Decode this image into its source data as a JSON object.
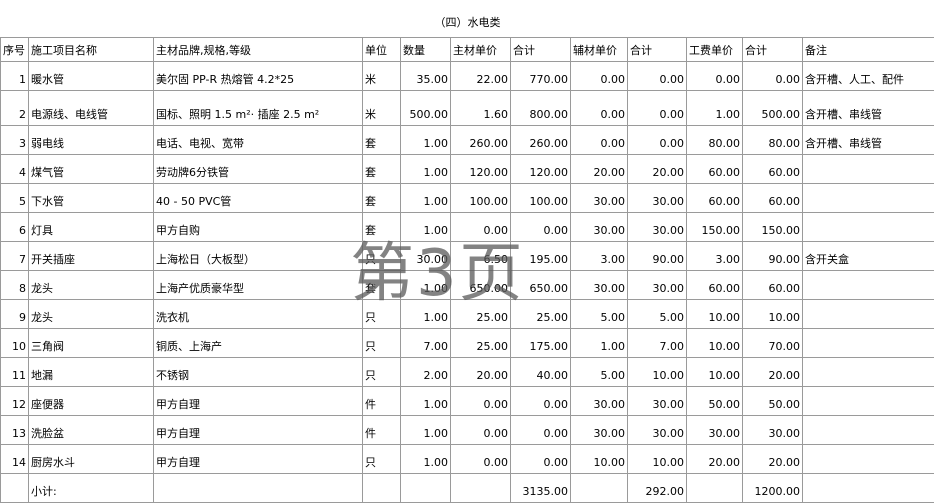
{
  "title": "（四）水电类",
  "headers": [
    "序号",
    "施工项目名称",
    "主材品牌,规格,等级",
    "单位",
    "数量",
    "主材单价",
    "合计",
    "辅材单价",
    "合计",
    "工费单价",
    "合计",
    "备注"
  ],
  "rows": [
    [
      "1",
      "暖水管",
      "美尔固 PP-R 热熔管  4.2*25",
      "米",
      "35.00",
      "22.00",
      "770.00",
      "0.00",
      "0.00",
      "0.00",
      "0.00",
      "含开槽、人工、配件"
    ],
    [
      "2",
      "电源线、电线管",
      "国标、照明 1.5 m²· 插座 2.5 m²",
      "米",
      "500.00",
      "1.60",
      "800.00",
      "0.00",
      "0.00",
      "1.00",
      "500.00",
      "含开槽、串线管"
    ],
    [
      "3",
      "弱电线",
      "电话、电视、宽带",
      "套",
      "1.00",
      "260.00",
      "260.00",
      "0.00",
      "0.00",
      "80.00",
      "80.00",
      "含开槽、串线管"
    ],
    [
      "4",
      "煤气管",
      "劳动牌6分铁管",
      "套",
      "1.00",
      "120.00",
      "120.00",
      "20.00",
      "20.00",
      "60.00",
      "60.00"
    ],
    [
      "5",
      "下水管",
      "40 - 50 PVC管",
      "套",
      "1.00",
      "100.00",
      "100.00",
      "30.00",
      "30.00",
      "60.00",
      "60.00"
    ],
    [
      "6",
      "灯具",
      "甲方自购",
      "套",
      "1.00",
      "0.00",
      "0.00",
      "30.00",
      "30.00",
      "150.00",
      "150.00"
    ],
    [
      "7",
      "开关插座",
      "上海松日（大板型）",
      "只",
      "30.00",
      "6.50",
      "195.00",
      "3.00",
      "90.00",
      "3.00",
      "90.00",
      "含开关盒"
    ],
    [
      "8",
      "龙头",
      "上海产优质豪华型",
      "套",
      "1.00",
      "650.00",
      "650.00",
      "30.00",
      "30.00",
      "60.00",
      "60.00"
    ],
    [
      "9",
      "龙头",
      "洗衣机",
      "只",
      "1.00",
      "25.00",
      "25.00",
      "5.00",
      "5.00",
      "10.00",
      "10.00"
    ],
    [
      "10",
      "三角阀",
      "铜质、上海产",
      "只",
      "7.00",
      "25.00",
      "175.00",
      "1.00",
      "7.00",
      "10.00",
      "70.00"
    ],
    [
      "11",
      "地漏",
      "不锈钢",
      "只",
      "2.00",
      "20.00",
      "40.00",
      "5.00",
      "10.00",
      "10.00",
      "20.00"
    ],
    [
      "12",
      "座便器",
      "甲方自理",
      "件",
      "1.00",
      "0.00",
      "0.00",
      "30.00",
      "30.00",
      "50.00",
      "50.00"
    ],
    [
      "13",
      "洗脸盆",
      "甲方自理",
      "件",
      "1.00",
      "0.00",
      "0.00",
      "30.00",
      "30.00",
      "30.00",
      "30.00"
    ],
    [
      "14",
      "厨房水斗",
      "甲方自理",
      "只",
      "1.00",
      "0.00",
      "0.00",
      "10.00",
      "10.00",
      "20.00",
      "20.00"
    ]
  ],
  "subtotal": {
    "label": "小计:",
    "main_total": "3135.00",
    "aux_total": "292.00",
    "labor_total": "1200.00"
  },
  "watermark": "第3页"
}
